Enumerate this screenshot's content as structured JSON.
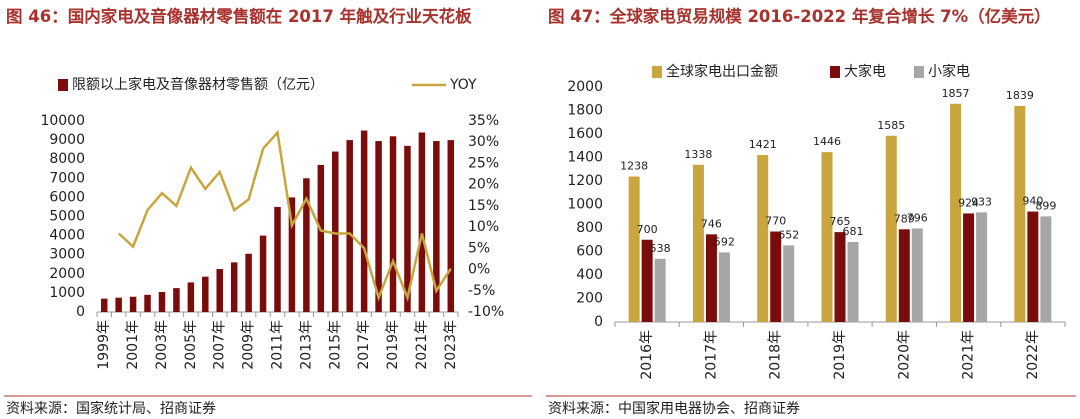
{
  "chart_data": [
    {
      "type": "bar",
      "title": "图 46：国内家电及音像器材零售额在 2017 年触及行业天花板",
      "source": "资料来源：国家统计局、招商证券",
      "categories": [
        "1999年",
        null,
        "2001年",
        null,
        "2003年",
        null,
        "2005年",
        null,
        "2007年",
        null,
        "2009年",
        null,
        "2011年",
        null,
        "2013年",
        null,
        "2015年",
        null,
        "2017年",
        null,
        "2019年",
        null,
        "2021年",
        null,
        "2023年"
      ],
      "series": [
        {
          "name": "限额以上家电及音像器材零售额（亿元）",
          "type": "bar",
          "color": "#7a0c0c",
          "values": [
            700,
            750,
            800,
            900,
            1050,
            1250,
            1550,
            1850,
            2250,
            2600,
            3050,
            4000,
            5500,
            6000,
            7000,
            7700,
            8400,
            9000,
            9500,
            8950,
            9200,
            8700,
            9400,
            8950,
            9000
          ]
        },
        {
          "name": "YOY",
          "type": "line",
          "axis": "y2",
          "color": "#c9a53d",
          "values": [
            null,
            8.5,
            5.4,
            14,
            18,
            15,
            24,
            19,
            23,
            14,
            16.5,
            28.5,
            32.3,
            10.4,
            16.7,
            9.2,
            8.5,
            8.5,
            5,
            -6.6,
            2,
            -6.6,
            8.5,
            -5,
            0.2
          ]
        }
      ],
      "ylim": [
        0,
        10000
      ],
      "yticks": [
        0,
        1000,
        2000,
        3000,
        4000,
        5000,
        6000,
        7000,
        8000,
        9000,
        10000
      ],
      "y2lim": [
        -10,
        35
      ],
      "y2ticks": [
        {
          "value": -10,
          "label": "-10%"
        },
        {
          "value": -5,
          "label": "-5%"
        },
        {
          "value": 0,
          "label": "0%"
        },
        {
          "value": 5,
          "label": "5%"
        },
        {
          "value": 10,
          "label": "10%"
        },
        {
          "value": 15,
          "label": "15%"
        },
        {
          "value": 20,
          "label": "20%"
        },
        {
          "value": 25,
          "label": "25%"
        },
        {
          "value": 30,
          "label": "30%"
        },
        {
          "value": 35,
          "label": "35%"
        }
      ],
      "grid": false
    },
    {
      "type": "bar",
      "title": "图 47：全球家电贸易规模 2016-2022 年复合增长 7%（亿美元）",
      "source": "资料来源：中国家用电器协会、招商证券",
      "categories": [
        "2016年",
        "2017年",
        "2018年",
        "2019年",
        "2020年",
        "2021年",
        "2022年"
      ],
      "series": [
        {
          "name": "全球家电出口金额",
          "type": "bar",
          "color": "#c9a53d",
          "values": [
            1238,
            1338,
            1421,
            1446,
            1585,
            1857,
            1839
          ]
        },
        {
          "name": "大家电",
          "type": "bar",
          "color": "#7a0c0c",
          "values": [
            700,
            746,
            770,
            765,
            789,
            924,
            940
          ]
        },
        {
          "name": "小家电",
          "type": "bar",
          "color": "#a6a6a6",
          "values": [
            538,
            592,
            652,
            681,
            796,
            933,
            899
          ]
        }
      ],
      "ylim": [
        0,
        2000
      ],
      "yticks": [
        0,
        200,
        400,
        600,
        800,
        1000,
        1200,
        1400,
        1600,
        1800,
        2000
      ],
      "grid": false,
      "data_labels": true
    }
  ]
}
